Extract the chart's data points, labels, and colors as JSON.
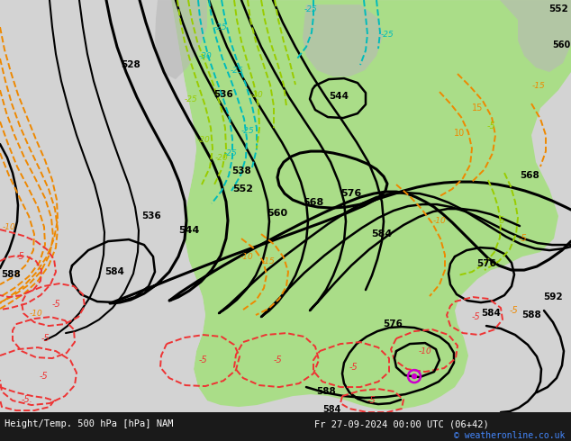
{
  "title_left": "Height/Temp. 500 hPa [hPa] NAM",
  "title_right": "Fr 27-09-2024 00:00 UTC (06+42)",
  "copyright": "© weatheronline.co.uk",
  "bg_color": "#d3d3d3",
  "land_green_color": "#aadd88",
  "land_gray_color": "#b8b8b8",
  "height_contour_color": "#000000",
  "temp_neg_color": "#ee3333",
  "temp_orange_color": "#ee8800",
  "temp_cyan_color": "#00bbbb",
  "temp_lgreen_color": "#99cc00",
  "bottom_bar_color": "#1a1a1a",
  "bottom_text_color": "#ffffff",
  "copyright_color": "#4488ff",
  "figw": 6.34,
  "figh": 4.9,
  "dpi": 100
}
